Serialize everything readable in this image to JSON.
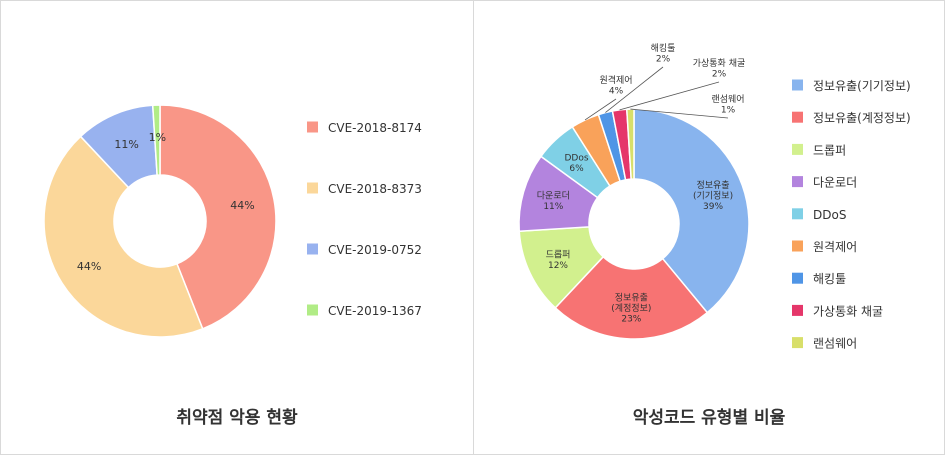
{
  "charts": [
    {
      "caption": "취약점 악용 현황",
      "chart_data": {
        "type": "pie",
        "donut": true,
        "categories": [
          "CVE-2018-8174",
          "CVE-2018-8373",
          "CVE-2019-0752",
          "CVE-2019-1367"
        ],
        "values": [
          44,
          44,
          11,
          1
        ],
        "value_labels": [
          "44%",
          "44%",
          "11%",
          "1%"
        ],
        "colors": [
          "#f99687",
          "#fbd79a",
          "#98b2ef",
          "#b1ec86"
        ],
        "legend": "right"
      }
    },
    {
      "caption": "악성코드 유형별 비율",
      "chart_data": {
        "type": "pie",
        "donut": true,
        "categories": [
          "정보유출(기기정보)",
          "정보유출(계정정보)",
          "드롭퍼",
          "다운로더",
          "DDoS",
          "원격제어",
          "해킹툴",
          "가상통화 채굴",
          "랜섬웨어"
        ],
        "values": [
          39,
          23,
          12,
          11,
          6,
          4,
          2,
          2,
          1
        ],
        "slice_labels": [
          [
            "정보유출",
            "(기기정보)",
            "39%"
          ],
          [
            "정보유출",
            "(계정정보)",
            "23%"
          ],
          [
            "드롭퍼",
            "12%"
          ],
          [
            "다운로더",
            "11%"
          ],
          [
            "DDos",
            "6%"
          ],
          [
            "원격제어",
            "4%"
          ],
          [
            "해킹툴",
            "2%"
          ],
          [
            "가상통화 채굴",
            "2%"
          ],
          [
            "랜섬웨어",
            "1%"
          ]
        ],
        "colors": [
          "#88b4ee",
          "#f77373",
          "#d2f08e",
          "#b384de",
          "#7fd0e6",
          "#f9a25a",
          "#4f95e6",
          "#e5366a",
          "#d8df6a"
        ],
        "legend": "right"
      }
    }
  ]
}
